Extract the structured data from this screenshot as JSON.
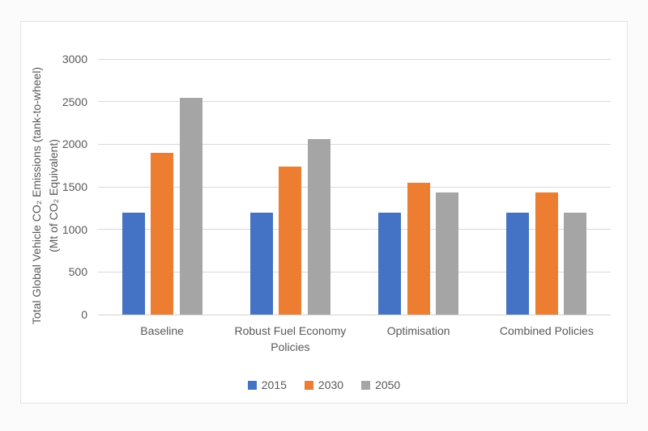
{
  "chart_data": {
    "type": "bar",
    "title": "",
    "ylabel": "Total Global Vehicle CO₂ Emissions (tank-to-wheel)\n(Mt of CO₂ Equivalent)",
    "xlabel": "",
    "categories": [
      "Baseline",
      "Robust Fuel Economy Policies",
      "Optimisation",
      "Combined Policies"
    ],
    "series": [
      {
        "name": "2015",
        "color": "#4472C4",
        "values": [
          1200,
          1200,
          1200,
          1200
        ]
      },
      {
        "name": "2030",
        "color": "#ED7D31",
        "values": [
          1900,
          1740,
          1550,
          1430
        ]
      },
      {
        "name": "2050",
        "color": "#A5A5A5",
        "values": [
          2540,
          2060,
          1430,
          1200
        ]
      }
    ],
    "ylim": [
      0,
      3000
    ],
    "yticks": [
      0,
      500,
      1000,
      1500,
      2000,
      2500,
      3000
    ],
    "grid": true,
    "legend_position": "bottom",
    "text_color": "#595959",
    "gridline_color": "#D9D9D9",
    "plot_background": "#FFFFFF"
  }
}
